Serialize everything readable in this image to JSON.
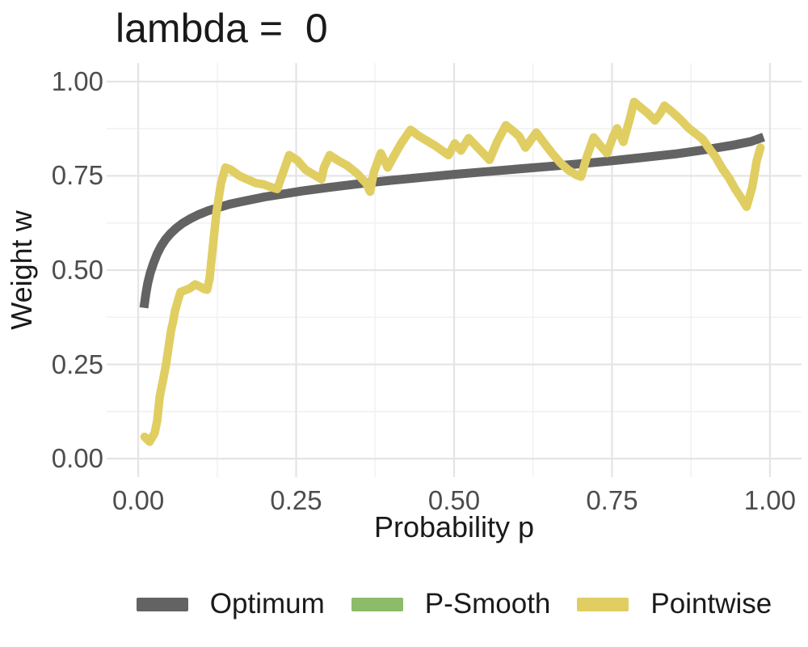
{
  "chart_data": {
    "type": "line",
    "title": "lambda =  0",
    "xlabel": "Probability p",
    "ylabel": "Weight w",
    "xlim": [
      -0.05,
      1.05
    ],
    "ylim": [
      -0.049,
      1.049
    ],
    "grid": "on",
    "legend_position": "bottom",
    "x_ticks": [
      {
        "value": 0.0,
        "label": "0.00"
      },
      {
        "value": 0.25,
        "label": "0.25"
      },
      {
        "value": 0.5,
        "label": "0.50"
      },
      {
        "value": 0.75,
        "label": "0.75"
      },
      {
        "value": 1.0,
        "label": "1.00"
      }
    ],
    "y_ticks": [
      {
        "value": 0.0,
        "label": "0.00"
      },
      {
        "value": 0.25,
        "label": "0.25"
      },
      {
        "value": 0.5,
        "label": "0.50"
      },
      {
        "value": 0.75,
        "label": "0.75"
      },
      {
        "value": 1.0,
        "label": "1.00"
      }
    ],
    "x_minor": [
      0.125,
      0.375,
      0.625,
      0.875
    ],
    "y_minor": [
      0.125,
      0.375,
      0.625,
      0.875
    ],
    "colors": {
      "grid_major": "#e4e4e4",
      "grid_minor": "#f2f2f2",
      "tick_label": "#4d4d4d",
      "text": "#1a1a1a",
      "background": "#ffffff"
    },
    "series": [
      {
        "name": "Optimum",
        "color": "#636363",
        "line_width": 11,
        "points": [
          [
            0.009,
            0.4
          ],
          [
            0.012,
            0.437
          ],
          [
            0.015,
            0.465
          ],
          [
            0.019,
            0.492
          ],
          [
            0.024,
            0.518
          ],
          [
            0.03,
            0.543
          ],
          [
            0.036,
            0.563
          ],
          [
            0.043,
            0.581
          ],
          [
            0.051,
            0.597
          ],
          [
            0.06,
            0.611
          ],
          [
            0.07,
            0.624
          ],
          [
            0.082,
            0.636
          ],
          [
            0.095,
            0.647
          ],
          [
            0.11,
            0.657
          ],
          [
            0.125,
            0.665
          ],
          [
            0.145,
            0.675
          ],
          [
            0.17,
            0.684
          ],
          [
            0.2,
            0.694
          ],
          [
            0.23,
            0.702
          ],
          [
            0.26,
            0.71
          ],
          [
            0.3,
            0.719
          ],
          [
            0.35,
            0.729
          ],
          [
            0.4,
            0.738
          ],
          [
            0.45,
            0.746
          ],
          [
            0.5,
            0.754
          ],
          [
            0.55,
            0.761
          ],
          [
            0.6,
            0.768
          ],
          [
            0.65,
            0.775
          ],
          [
            0.7,
            0.782
          ],
          [
            0.75,
            0.79
          ],
          [
            0.8,
            0.799
          ],
          [
            0.85,
            0.808
          ],
          [
            0.9,
            0.82
          ],
          [
            0.94,
            0.831
          ],
          [
            0.97,
            0.841
          ],
          [
            0.99,
            0.853
          ]
        ]
      },
      {
        "name": "P-Smooth",
        "color": "#8cbb69",
        "line_width": 10.5,
        "points": []
      },
      {
        "name": "Pointwise",
        "color": "#e0ce62",
        "line_width": 10.5,
        "points": [
          [
            0.01,
            0.058
          ],
          [
            0.018,
            0.045
          ],
          [
            0.026,
            0.068
          ],
          [
            0.03,
            0.1
          ],
          [
            0.034,
            0.165
          ],
          [
            0.041,
            0.223
          ],
          [
            0.044,
            0.25
          ],
          [
            0.048,
            0.295
          ],
          [
            0.052,
            0.34
          ],
          [
            0.055,
            0.362
          ],
          [
            0.058,
            0.39
          ],
          [
            0.063,
            0.42
          ],
          [
            0.067,
            0.442
          ],
          [
            0.075,
            0.447
          ],
          [
            0.082,
            0.452
          ],
          [
            0.09,
            0.462
          ],
          [
            0.098,
            0.456
          ],
          [
            0.104,
            0.45
          ],
          [
            0.109,
            0.448
          ],
          [
            0.113,
            0.478
          ],
          [
            0.118,
            0.56
          ],
          [
            0.124,
            0.655
          ],
          [
            0.131,
            0.73
          ],
          [
            0.138,
            0.772
          ],
          [
            0.146,
            0.767
          ],
          [
            0.16,
            0.75
          ],
          [
            0.172,
            0.741
          ],
          [
            0.186,
            0.731
          ],
          [
            0.199,
            0.727
          ],
          [
            0.21,
            0.72
          ],
          [
            0.22,
            0.715
          ],
          [
            0.23,
            0.762
          ],
          [
            0.239,
            0.805
          ],
          [
            0.252,
            0.791
          ],
          [
            0.265,
            0.766
          ],
          [
            0.278,
            0.753
          ],
          [
            0.29,
            0.741
          ],
          [
            0.294,
            0.772
          ],
          [
            0.303,
            0.805
          ],
          [
            0.317,
            0.79
          ],
          [
            0.331,
            0.777
          ],
          [
            0.346,
            0.757
          ],
          [
            0.361,
            0.73
          ],
          [
            0.367,
            0.708
          ],
          [
            0.373,
            0.76
          ],
          [
            0.384,
            0.81
          ],
          [
            0.395,
            0.772
          ],
          [
            0.404,
            0.8
          ],
          [
            0.417,
            0.838
          ],
          [
            0.431,
            0.872
          ],
          [
            0.444,
            0.856
          ],
          [
            0.457,
            0.843
          ],
          [
            0.47,
            0.83
          ],
          [
            0.481,
            0.817
          ],
          [
            0.491,
            0.805
          ],
          [
            0.501,
            0.836
          ],
          [
            0.511,
            0.817
          ],
          [
            0.523,
            0.85
          ],
          [
            0.535,
            0.829
          ],
          [
            0.546,
            0.81
          ],
          [
            0.556,
            0.792
          ],
          [
            0.568,
            0.84
          ],
          [
            0.582,
            0.884
          ],
          [
            0.594,
            0.868
          ],
          [
            0.603,
            0.855
          ],
          [
            0.613,
            0.825
          ],
          [
            0.622,
            0.846
          ],
          [
            0.63,
            0.865
          ],
          [
            0.643,
            0.836
          ],
          [
            0.655,
            0.81
          ],
          [
            0.668,
            0.785
          ],
          [
            0.681,
            0.765
          ],
          [
            0.694,
            0.752
          ],
          [
            0.701,
            0.748
          ],
          [
            0.71,
            0.8
          ],
          [
            0.721,
            0.852
          ],
          [
            0.731,
            0.831
          ],
          [
            0.742,
            0.81
          ],
          [
            0.752,
            0.855
          ],
          [
            0.758,
            0.876
          ],
          [
            0.768,
            0.84
          ],
          [
            0.778,
            0.9
          ],
          [
            0.785,
            0.946
          ],
          [
            0.795,
            0.932
          ],
          [
            0.806,
            0.917
          ],
          [
            0.818,
            0.897
          ],
          [
            0.826,
            0.915
          ],
          [
            0.833,
            0.936
          ],
          [
            0.845,
            0.92
          ],
          [
            0.858,
            0.9
          ],
          [
            0.871,
            0.877
          ],
          [
            0.884,
            0.86
          ],
          [
            0.893,
            0.848
          ],
          [
            0.905,
            0.82
          ],
          [
            0.914,
            0.8
          ],
          [
            0.925,
            0.768
          ],
          [
            0.935,
            0.745
          ],
          [
            0.945,
            0.715
          ],
          [
            0.955,
            0.69
          ],
          [
            0.963,
            0.668
          ],
          [
            0.972,
            0.72
          ],
          [
            0.979,
            0.79
          ],
          [
            0.985,
            0.825
          ]
        ]
      }
    ]
  }
}
